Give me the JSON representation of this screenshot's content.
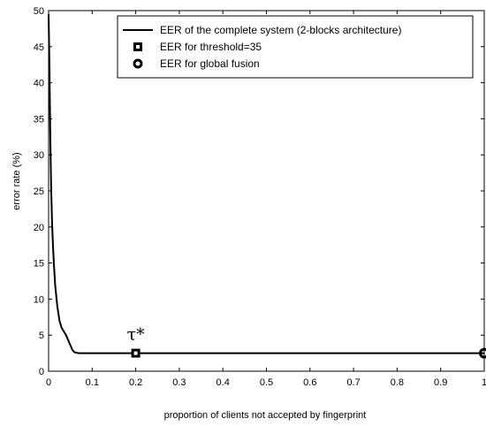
{
  "chart_data": {
    "type": "line",
    "title": "",
    "xlabel": "proportion of clients not accepted by fingerprint",
    "ylabel": "error rate (%)",
    "xlim": [
      0,
      1
    ],
    "ylim": [
      0,
      50
    ],
    "xticks": [
      "0",
      "0.1",
      "0.2",
      "0.3",
      "0.4",
      "0.5",
      "0.6",
      "0.7",
      "0.8",
      "0.9",
      "1"
    ],
    "yticks": [
      "0",
      "5",
      "10",
      "15",
      "20",
      "25",
      "30",
      "35",
      "40",
      "45",
      "50"
    ],
    "grid": false,
    "legend_position": "top-right",
    "series": [
      {
        "name": "EER of the complete system (2-blocks architecture)",
        "style": "line",
        "color": "#000000",
        "x": [
          0,
          0.002,
          0.004,
          0.006,
          0.008,
          0.01,
          0.012,
          0.015,
          0.02,
          0.025,
          0.03,
          0.04,
          0.05,
          0.055,
          0.06,
          0.07,
          0.08,
          0.1,
          0.2,
          0.3,
          0.5,
          0.7,
          0.9,
          1.0
        ],
        "y": [
          49.5,
          42,
          32,
          25,
          20.5,
          17.5,
          15,
          12,
          9,
          7,
          6,
          5,
          3.6,
          2.9,
          2.6,
          2.5,
          2.5,
          2.5,
          2.5,
          2.5,
          2.5,
          2.5,
          2.5,
          2.5
        ]
      },
      {
        "name": "EER for threshold=35",
        "style": "square-marker",
        "color": "#000000",
        "x": [
          0.2
        ],
        "y": [
          2.5
        ]
      },
      {
        "name": "EER for global fusion",
        "style": "circle-marker",
        "color": "#000000",
        "x": [
          1.0
        ],
        "y": [
          2.5
        ]
      }
    ],
    "annotations": [
      {
        "text": "τ*",
        "x": 0.2,
        "y": 2.5
      }
    ]
  }
}
